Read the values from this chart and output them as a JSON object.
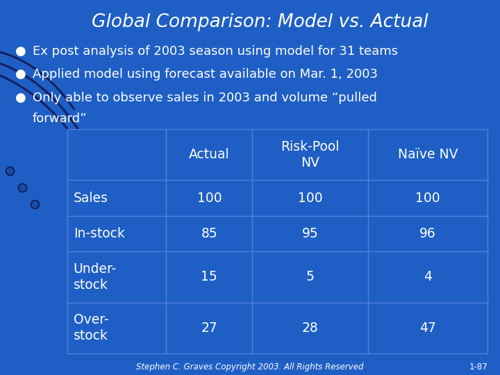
{
  "title": "Global Comparison: Model vs. Actual",
  "bullet1": "Ex post analysis of 2003 season using model for 31 teams",
  "bullet2": "Applied model using forecast available on Mar. 1, 2003",
  "bullet3a": "Only able to observe sales in 2003 and volume “pulled",
  "bullet3b": "forward”",
  "table_headers": [
    "",
    "Actual",
    "Risk-Pool\nNV",
    "Naïve NV"
  ],
  "table_rows": [
    [
      "Sales",
      "100",
      "100",
      "100"
    ],
    [
      "In-stock",
      "85",
      "95",
      "96"
    ],
    [
      "Under-\nstock",
      "15",
      "5",
      "4"
    ],
    [
      "Over-\nstock",
      "27",
      "28",
      "47"
    ]
  ],
  "bg_color": "#1f5fc5",
  "text_color": "#ffffff",
  "title_color": "#ffffff",
  "grid_color": "#5580dd",
  "footer_text": "Stephen C. Graves Copyright 2003. All Rights Reserved",
  "page_num": "1-87",
  "curve_color": "#152060",
  "dot_color": "#152060",
  "dot_fill": "#1a4baa"
}
